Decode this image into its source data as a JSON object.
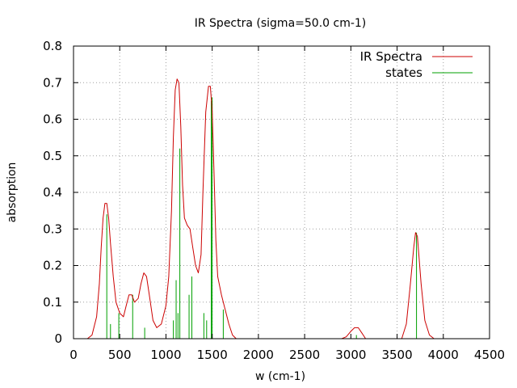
{
  "chart_data": {
    "type": "line",
    "title": "IR Spectra (sigma=50.0 cm-1)",
    "xlabel": "w (cm-1)",
    "ylabel": "absorption",
    "xlim": [
      0,
      4500
    ],
    "ylim": [
      0,
      0.8
    ],
    "x_ticks": [
      0,
      500,
      1000,
      1500,
      2000,
      2500,
      3000,
      3500,
      4000,
      4500
    ],
    "y_ticks": [
      0,
      0.1,
      0.2,
      0.3,
      0.4,
      0.5,
      0.6,
      0.7,
      0.8
    ],
    "x_tick_labels": [
      "0",
      "500",
      "1000",
      "1500",
      "2000",
      "2500",
      "3000",
      "3500",
      "4000",
      "4500"
    ],
    "y_tick_labels": [
      "0",
      "0.1",
      "0.2",
      "0.3",
      "0.4",
      "0.5",
      "0.6",
      "0.7",
      "0.8"
    ],
    "grid": true,
    "legend_position": "top-right",
    "series": [
      {
        "name": "IR Spectra",
        "kind": "line",
        "color": "#cc0000",
        "x": [
          150,
          200,
          250,
          280,
          300,
          320,
          340,
          360,
          380,
          400,
          430,
          460,
          500,
          540,
          570,
          600,
          630,
          660,
          700,
          730,
          760,
          790,
          820,
          860,
          900,
          950,
          1000,
          1030,
          1060,
          1080,
          1100,
          1120,
          1140,
          1160,
          1180,
          1200,
          1230,
          1260,
          1290,
          1320,
          1350,
          1380,
          1400,
          1430,
          1460,
          1480,
          1500,
          1520,
          1540,
          1560,
          1600,
          1640,
          1680,
          1720,
          1760,
          1800,
          1850,
          1900,
          2900,
          2950,
          3000,
          3040,
          3080,
          3120,
          3160,
          3200,
          3550,
          3600,
          3640,
          3680,
          3700,
          3720,
          3760,
          3800,
          3850,
          3900
        ],
        "y": [
          0.0,
          0.01,
          0.06,
          0.15,
          0.25,
          0.33,
          0.37,
          0.37,
          0.33,
          0.26,
          0.17,
          0.1,
          0.07,
          0.06,
          0.09,
          0.12,
          0.12,
          0.1,
          0.11,
          0.15,
          0.18,
          0.17,
          0.12,
          0.05,
          0.03,
          0.04,
          0.09,
          0.17,
          0.35,
          0.55,
          0.68,
          0.71,
          0.7,
          0.58,
          0.42,
          0.33,
          0.31,
          0.3,
          0.25,
          0.2,
          0.18,
          0.23,
          0.4,
          0.62,
          0.69,
          0.69,
          0.62,
          0.45,
          0.27,
          0.17,
          0.12,
          0.08,
          0.04,
          0.01,
          0.0,
          0.0,
          0.0,
          0.0,
          0.0,
          0.005,
          0.02,
          0.03,
          0.03,
          0.015,
          0.0,
          0.0,
          0.0,
          0.04,
          0.14,
          0.25,
          0.29,
          0.28,
          0.15,
          0.05,
          0.01,
          0.0
        ]
      },
      {
        "name": "states",
        "kind": "impulse",
        "color": "#00a000",
        "x": [
          360,
          400,
          490,
          640,
          770,
          1080,
          1110,
          1130,
          1150,
          1250,
          1280,
          1410,
          1440,
          1490,
          1500,
          1620,
          3060,
          3710
        ],
        "y": [
          0.34,
          0.04,
          0.07,
          0.12,
          0.03,
          0.05,
          0.16,
          0.07,
          0.52,
          0.12,
          0.17,
          0.07,
          0.05,
          0.65,
          0.66,
          0.08,
          0.01,
          0.29
        ]
      }
    ]
  }
}
